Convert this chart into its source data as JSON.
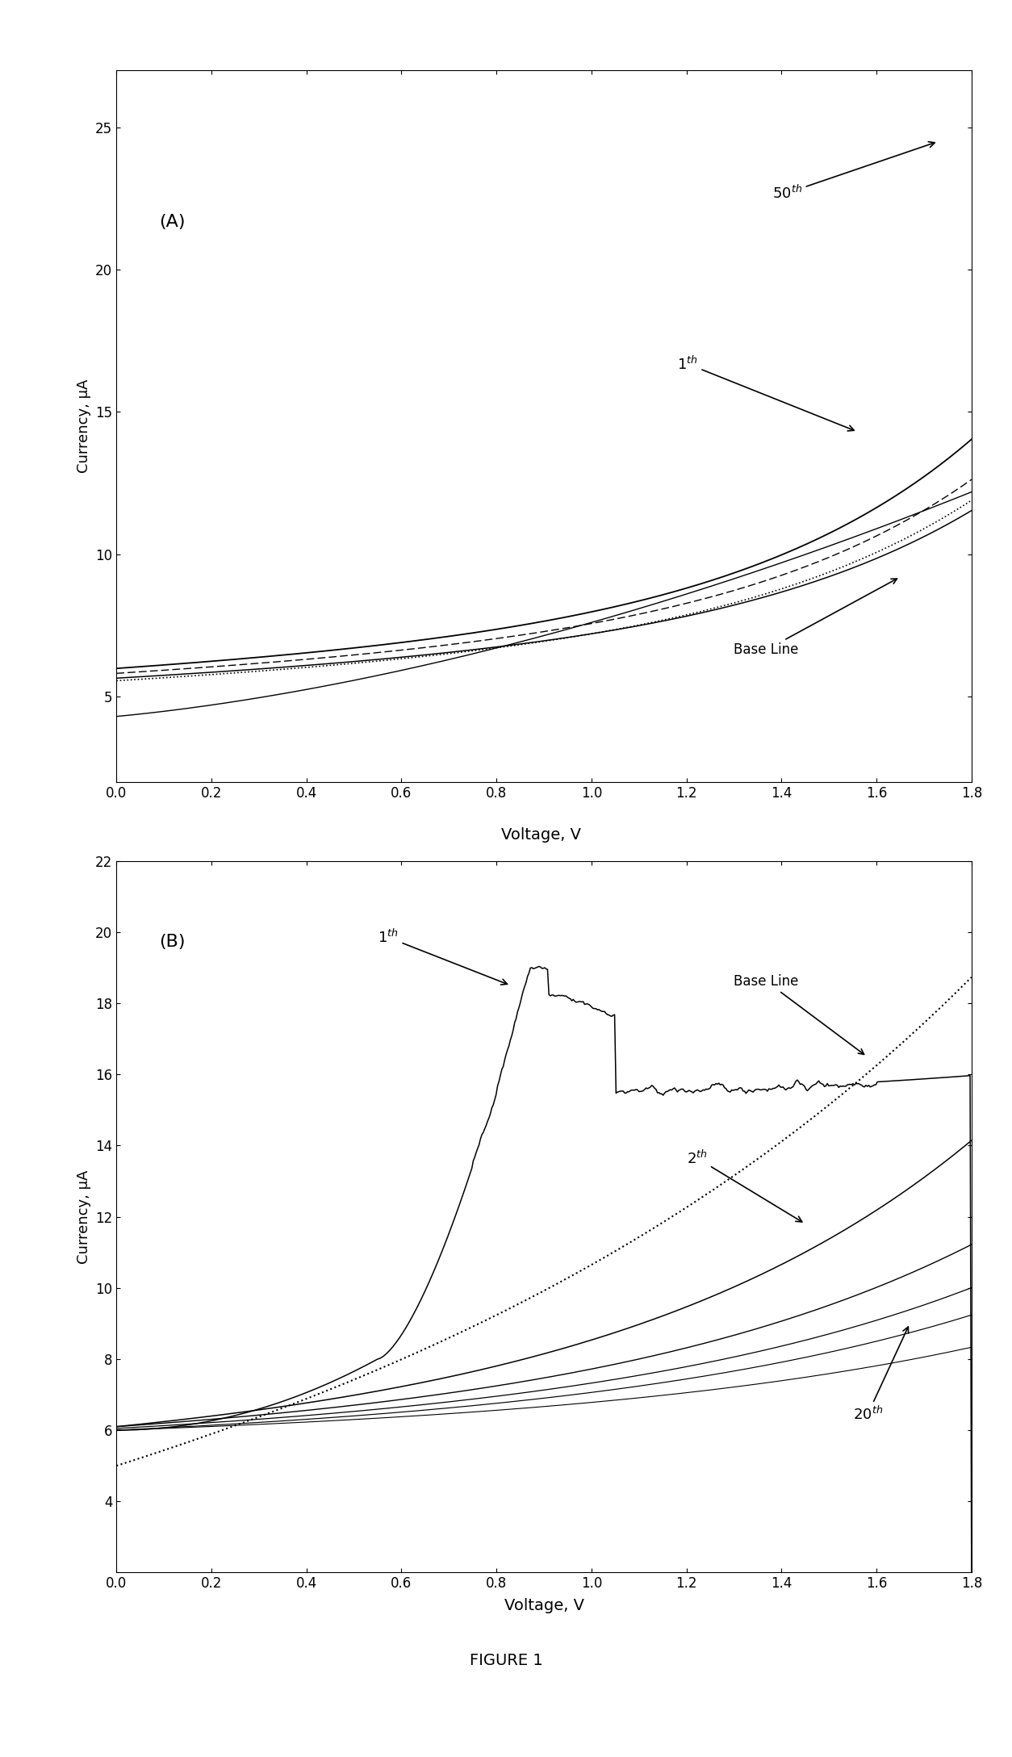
{
  "fig_width": 12.54,
  "fig_height": 21.77,
  "background_color": "#ffffff",
  "panel_A": {
    "label": "(A)",
    "xlabel": "Voltage, V",
    "ylabel": "Currency, μA",
    "xlim": [
      0.0,
      1.8
    ],
    "ylim": [
      2,
      27
    ],
    "xticks": [
      0.0,
      0.2,
      0.4,
      0.6,
      0.8,
      1.0,
      1.2,
      1.4,
      1.6,
      1.8
    ],
    "yticks": [
      5,
      10,
      15,
      20,
      25
    ]
  },
  "panel_B": {
    "label": "(B)",
    "xlabel": "Voltage, V",
    "ylabel": "Currency, μA",
    "xlim": [
      0.0,
      1.8
    ],
    "ylim": [
      2,
      22
    ],
    "xticks": [
      0.0,
      0.2,
      0.4,
      0.6,
      0.8,
      1.0,
      1.2,
      1.4,
      1.6,
      1.8
    ],
    "yticks": [
      4,
      6,
      8,
      10,
      12,
      14,
      16,
      18,
      20,
      22
    ]
  },
  "figure_title": "FIGURE 1"
}
